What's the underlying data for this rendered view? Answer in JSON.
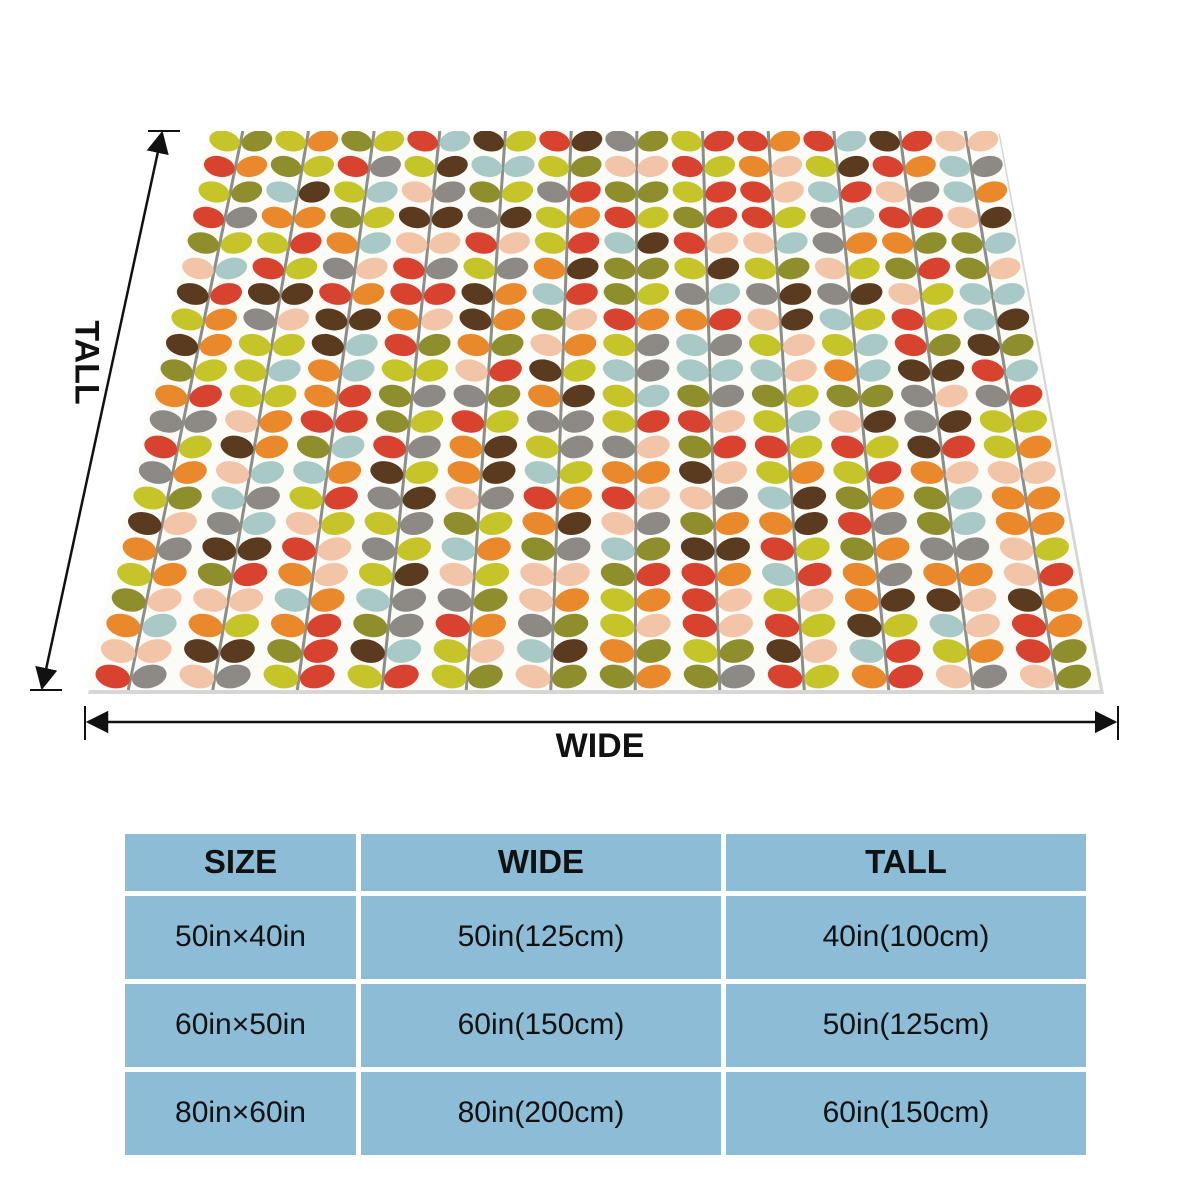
{
  "dimensions": {
    "wide_label": "WIDE",
    "tall_label": "TALL"
  },
  "pattern_colors": [
    "#d7432f",
    "#e9892b",
    "#f2c4a8",
    "#c5c52a",
    "#8e8e2c",
    "#5b3b1f",
    "#a9c9c6",
    "#8d8a85"
  ],
  "stem_color": "#8e8e88",
  "size_table": {
    "headers": [
      "SIZE",
      "WIDE",
      "TALL"
    ],
    "rows": [
      [
        "50in×40in",
        "50in(125cm)",
        "40in(100cm)"
      ],
      [
        "60in×50in",
        "60in(150cm)",
        "50in(125cm)"
      ],
      [
        "80in×60in",
        "80in(200cm)",
        "60in(150cm)"
      ]
    ]
  }
}
